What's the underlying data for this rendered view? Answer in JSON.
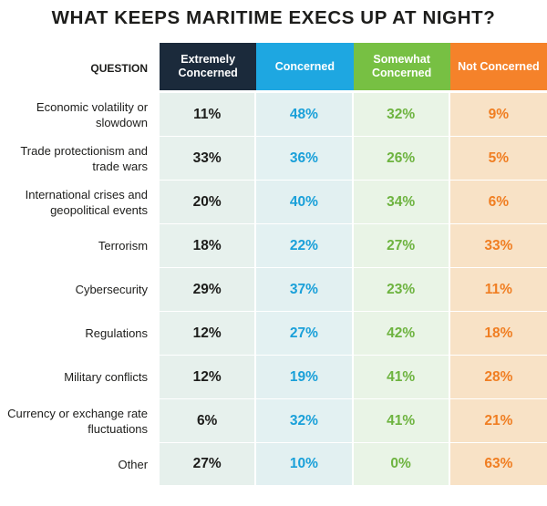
{
  "chart_data": {
    "type": "table",
    "title": "WHAT KEEPS MARITIME EXECS UP AT NIGHT?",
    "row_header": "QUESTION",
    "columns": [
      {
        "label": "Extremely Concerned",
        "color": "#1b2a3b"
      },
      {
        "label": "Concerned",
        "color": "#1ea7e1"
      },
      {
        "label": "Somewhat Concerned",
        "color": "#77c043"
      },
      {
        "label": "Not Concerned",
        "color": "#f5822a"
      }
    ],
    "rows": [
      {
        "question": "Economic volatility or slowdown",
        "values": [
          "11%",
          "48%",
          "32%",
          "9%"
        ]
      },
      {
        "question": "Trade protectionism and trade wars",
        "values": [
          "33%",
          "36%",
          "26%",
          "5%"
        ]
      },
      {
        "question": "International crises and geopolitical events",
        "values": [
          "20%",
          "40%",
          "34%",
          "6%"
        ]
      },
      {
        "question": "Terrorism",
        "values": [
          "18%",
          "22%",
          "27%",
          "33%"
        ]
      },
      {
        "question": "Cybersecurity",
        "values": [
          "29%",
          "37%",
          "23%",
          "11%"
        ]
      },
      {
        "question": "Regulations",
        "values": [
          "12%",
          "27%",
          "42%",
          "18%"
        ]
      },
      {
        "question": "Military conflicts",
        "values": [
          "12%",
          "19%",
          "41%",
          "28%"
        ]
      },
      {
        "question": "Currency or exchange rate fluctuations",
        "values": [
          "6%",
          "32%",
          "41%",
          "21%"
        ]
      },
      {
        "question": "Other",
        "values": [
          "27%",
          "10%",
          "0%",
          "63%"
        ]
      }
    ]
  }
}
